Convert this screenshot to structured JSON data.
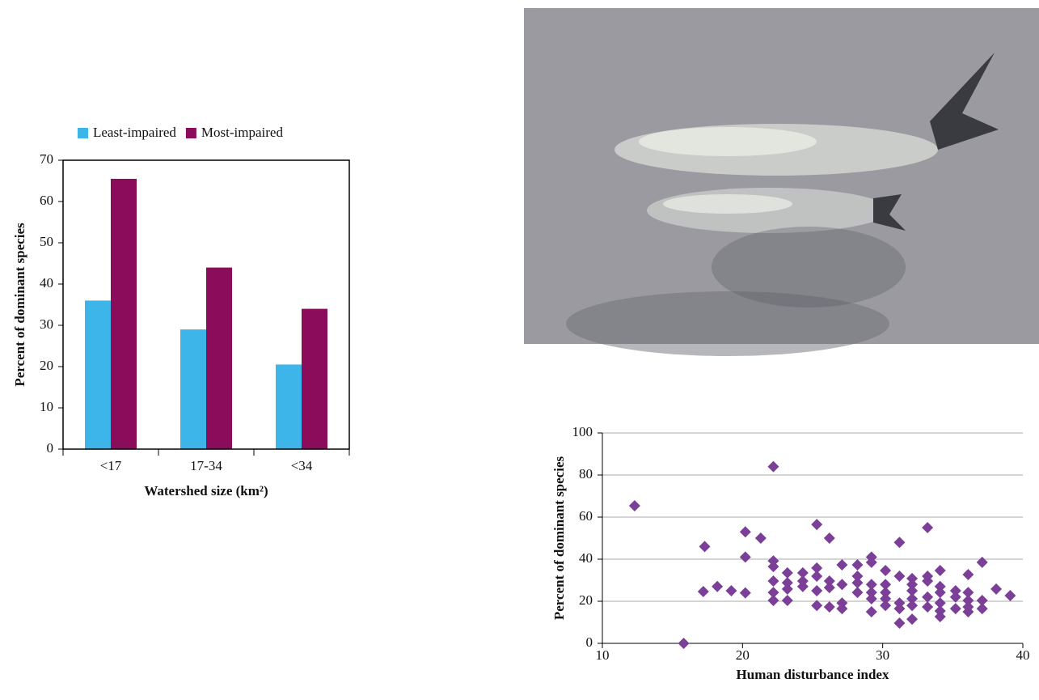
{
  "chart_data": [
    {
      "type": "bar",
      "categories": [
        "<17",
        "17-34",
        "<34"
      ],
      "series": [
        {
          "name": "Least-impaired",
          "color": "#3db5e8",
          "values": [
            36,
            29,
            20.5
          ]
        },
        {
          "name": "Most-impaired",
          "color": "#8b0c5a",
          "values": [
            65.5,
            44,
            34
          ]
        }
      ],
      "ylim": [
        0,
        70
      ],
      "yticks": [
        0,
        10,
        20,
        30,
        40,
        50,
        60,
        70
      ],
      "y_label": "Percent of dominant species",
      "x_label": "Watershed size (km²)"
    },
    {
      "type": "scatter",
      "color": "#7b3f98",
      "x": [
        12.3,
        15.8,
        17.3,
        17.2,
        18.2,
        19.2,
        20.2,
        20.2,
        20.2,
        21.3,
        22.2,
        22.2,
        22.2,
        22.2,
        22.2,
        22.2,
        23.2,
        23.2,
        23.2,
        23.2,
        24.3,
        24.3,
        24.3,
        25.3,
        25.3,
        25.3,
        25.3,
        25.3,
        26.2,
        26.2,
        26.2,
        26.2,
        27.1,
        27.1,
        27.1,
        27.1,
        28.2,
        28.2,
        28.2,
        28.2,
        29.2,
        29.2,
        29.2,
        29.2,
        29.2,
        29.2,
        30.2,
        30.2,
        30.2,
        30.2,
        30.2,
        31.2,
        31.2,
        31.2,
        31.2,
        31.2,
        32.1,
        32.1,
        32.1,
        32.1,
        32.1,
        32.1,
        33.2,
        33.2,
        33.2,
        33.2,
        33.2,
        34.1,
        34.1,
        34.1,
        34.1,
        34.1,
        34.1,
        35.2,
        35.2,
        35.2,
        36.1,
        36.1,
        36.1,
        36.1,
        36.1,
        37.1,
        37.1,
        37.1,
        38.1,
        39.1
      ],
      "values": [
        65.4,
        0,
        46,
        24.6,
        27,
        25,
        53,
        41,
        24,
        50,
        84,
        39.2,
        36.5,
        29.6,
        24.2,
        20.4,
        33.5,
        28.8,
        25.8,
        20.4,
        33.5,
        29.6,
        27,
        56.5,
        35.8,
        31.9,
        25,
        18,
        50,
        29.6,
        26.5,
        17.3,
        37.3,
        28,
        19.2,
        16.5,
        37.3,
        31.9,
        28.8,
        24.2,
        41,
        38.5,
        28,
        24.2,
        21.2,
        15,
        34.6,
        28,
        24.2,
        21.2,
        18,
        48,
        31.9,
        19.2,
        16.5,
        9.6,
        30.8,
        28,
        25,
        21.2,
        18,
        11.5,
        55,
        31.9,
        29.6,
        22,
        17.3,
        34.6,
        27,
        24.2,
        19.2,
        15.4,
        12.7,
        25,
        22,
        16.5,
        32.7,
        24.2,
        20.4,
        17.3,
        15,
        38.5,
        20.4,
        16.5,
        25.8,
        22.7
      ],
      "xlim": [
        10,
        40
      ],
      "xticks": [
        10,
        20,
        30,
        40
      ],
      "ylim": [
        0,
        100
      ],
      "yticks": [
        0,
        20,
        40,
        60,
        80,
        100
      ],
      "grid": true,
      "y_label": "Percent of dominant species",
      "x_label": "Human disturbance index"
    }
  ]
}
